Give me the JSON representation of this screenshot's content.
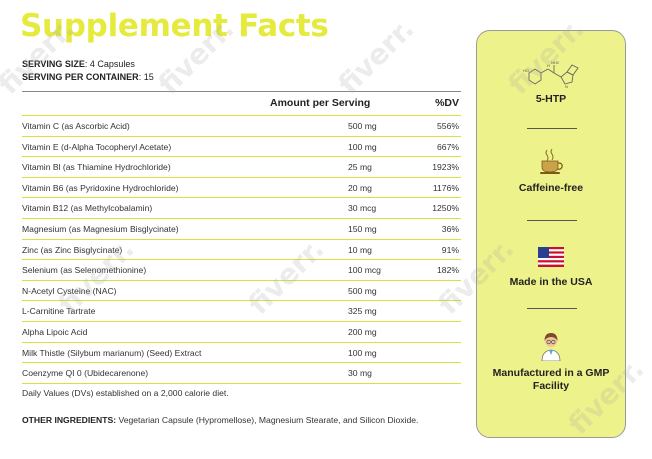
{
  "title": "Supplement Facts",
  "serving": {
    "size_label": "SERVING SIZE",
    "size_value": ": 4 Capsules",
    "per_container_label": "SERVING PER CONTAINER",
    "per_container_value": ": 15"
  },
  "table": {
    "header_amount": "Amount per Serving",
    "header_dv": "%DV",
    "rows": [
      {
        "name": "Vitamin C (as Ascorbic Acid)",
        "amount": "500 mg",
        "dv": "556%"
      },
      {
        "name": "Vitamin E (d-Alpha Tocopheryl Acetate)",
        "amount": "100 mg",
        "dv": "667%"
      },
      {
        "name": "Vitamin Bl (as Thiamine Hydrochloride)",
        "amount": "25 mg",
        "dv": "1923%"
      },
      {
        "name": "Vitamin B6 (as Pyridoxine Hydrochloride)",
        "amount": "20 mg",
        "dv": "1176%"
      },
      {
        "name": "Vitamin B12 (as Methylcobalamin)",
        "amount": "30 mcg",
        "dv": "1250%"
      },
      {
        "name": "Magnesium (as Magnesium Bisglycinate)",
        "amount": "150 mg",
        "dv": "36%"
      },
      {
        "name": "Zinc (as Zinc Bisglycinate)",
        "amount": "10 mg",
        "dv": "91%"
      },
      {
        "name": "Selenium (as Selenomethionine)",
        "amount": "100 mcg",
        "dv": "182%"
      },
      {
        "name": "N-Acetyl Cysteine (NAC)",
        "amount": "500 mg",
        "dv": ""
      },
      {
        "name": "L-Carnitine Tartrate",
        "amount": "325 mg",
        "dv": ""
      },
      {
        "name": "Alpha Lipoic Acid",
        "amount": "200 mg",
        "dv": ""
      },
      {
        "name": "Milk Thistle (Silybum marianum) (Seed) Extract",
        "amount": "100 mg",
        "dv": ""
      },
      {
        "name": "Coenzyme QI 0 (Ubidecarenone)",
        "amount": "30 mg",
        "dv": ""
      }
    ],
    "daily_values_note": "Daily Values (DVs) established on a 2,000 calorie diet."
  },
  "other_ingredients": {
    "label": "OTHER INGREDIENTS:",
    "text": " Vegetarian Capsule (Hypromellose), Magnesium Stearate, and Silicon Dioxide."
  },
  "features": [
    {
      "label": "5-HTP",
      "icon": "molecule-icon"
    },
    {
      "label": "Caffeine-free",
      "icon": "coffee-cup-icon"
    },
    {
      "label": "Made in the USA",
      "icon": "us-flag-icon"
    },
    {
      "label": "Manufactured in a GMP Facility",
      "icon": "scientist-icon"
    }
  ],
  "watermark": "fiverr.",
  "colors": {
    "title": "#e5ea3c",
    "panel": "#eef28a",
    "row_rule": "#d8e23a"
  }
}
